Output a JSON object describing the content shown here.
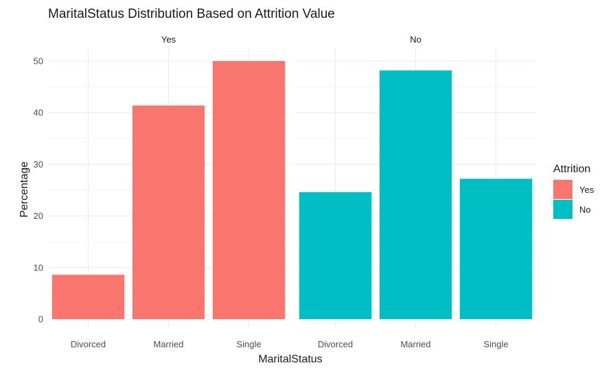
{
  "chart_data": {
    "type": "bar",
    "title": "MaritalStatus Distribution Based on Attrition Value",
    "xlabel": "MaritalStatus",
    "ylabel": "Percentage",
    "ylim": [
      0,
      52
    ],
    "yticks": [
      0,
      10,
      20,
      30,
      40,
      50
    ],
    "categories": [
      "Divorced",
      "Married",
      "Single"
    ],
    "facets": [
      {
        "label": "Yes",
        "color": "#F8766D",
        "values": [
          8.6,
          41.4,
          50.0
        ]
      },
      {
        "label": "No",
        "color": "#00BFC4",
        "values": [
          24.6,
          48.2,
          27.2
        ]
      }
    ],
    "legend": {
      "title": "Attrition",
      "position": "right",
      "items": [
        {
          "label": "Yes",
          "color": "#F8766D"
        },
        {
          "label": "No",
          "color": "#00BFC4"
        }
      ]
    },
    "grid": true
  }
}
